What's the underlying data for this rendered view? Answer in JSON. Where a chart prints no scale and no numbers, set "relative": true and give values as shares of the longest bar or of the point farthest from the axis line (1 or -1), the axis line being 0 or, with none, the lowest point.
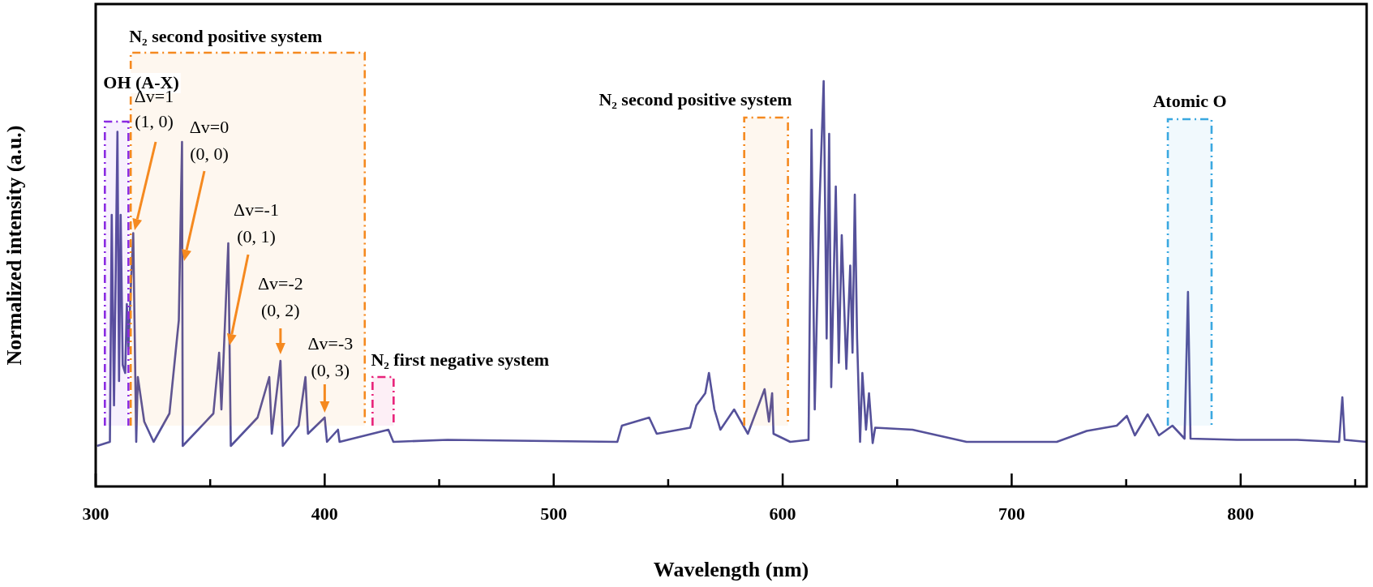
{
  "chart_data": {
    "type": "line",
    "relative": true,
    "xlabel": "Wavelength (nm)",
    "ylabel": "Normalized intensity (a.u.)",
    "xlim": [
      300,
      855
    ],
    "xticks": [
      300,
      {
        "value": 350,
        "label": null
      },
      400,
      {
        "value": 450,
        "label": null
      },
      500,
      {
        "value": 550,
        "label": null
      },
      600,
      {
        "value": 650,
        "label": null
      },
      700,
      {
        "value": 750,
        "label": null
      },
      800,
      {
        "value": 850,
        "label": null
      }
    ],
    "x": [
      300.6,
      306.2,
      307,
      308,
      309.5,
      310.2,
      310.9,
      311.8,
      312.9,
      313.6,
      314.3,
      315.4,
      316.4,
      317.7,
      318.4,
      321.2,
      325.3,
      332.2,
      336.3,
      337.7,
      338,
      351.4,
      353.9,
      354.9,
      357.9,
      359,
      370.7,
      375.8,
      376.9,
      380.7,
      381.7,
      388.6,
      391.6,
      392.7,
      400,
      401,
      405.8,
      406.5,
      427.8,
      430,
      453.6,
      527.8,
      529.8,
      541.7,
      545,
      559.6,
      562.3,
      566.2,
      567.8,
      570.2,
      572.8,
      578.8,
      584.8,
      592.1,
      594,
      595.4,
      596,
      603.3,
      611.3,
      612.6,
      614,
      615.9,
      617.9,
      619.2,
      620.3,
      621.2,
      623.2,
      624.5,
      625.8,
      627.8,
      629.5,
      630.5,
      631.5,
      632.5,
      633.8,
      634.8,
      636.4,
      637.7,
      639.3,
      640.4,
      656.7,
      680.3,
      719.7,
      732.8,
      745.9,
      750.3,
      753.8,
      759.4,
      764.3,
      770.2,
      775.5,
      777,
      778.1,
      798.4,
      824.7,
      843,
      844.4,
      845.4,
      855
    ],
    "series": [
      {
        "color": "#55519a",
        "values": [
          0.1,
          0.11,
          0.67,
          0.2,
          0.875,
          0.26,
          0.67,
          0.3,
          0.28,
          0.45,
          0.34,
          0.5,
          0.625,
          0.11,
          0.27,
          0.16,
          0.11,
          0.18,
          0.41,
          0.85,
          0.1,
          0.18,
          0.33,
          0.19,
          0.6,
          0.1,
          0.17,
          0.27,
          0.13,
          0.31,
          0.1,
          0.15,
          0.27,
          0.13,
          0.17,
          0.11,
          0.14,
          0.11,
          0.14,
          0.11,
          0.115,
          0.11,
          0.15,
          0.17,
          0.13,
          0.145,
          0.2,
          0.23,
          0.28,
          0.19,
          0.14,
          0.19,
          0.13,
          0.24,
          0.16,
          0.23,
          0.13,
          0.11,
          0.115,
          0.88,
          0.19,
          0.665,
          1.0,
          0.365,
          0.87,
          0.245,
          0.74,
          0.305,
          0.62,
          0.29,
          0.545,
          0.33,
          0.72,
          0.365,
          0.11,
          0.28,
          0.14,
          0.23,
          0.107,
          0.145,
          0.14,
          0.11,
          0.11,
          0.137,
          0.15,
          0.174,
          0.126,
          0.178,
          0.126,
          0.15,
          0.118,
          0.48,
          0.118,
          0.115,
          0.115,
          0.11,
          0.22,
          0.115,
          0.11
        ]
      }
    ],
    "marker": "none",
    "legend": false,
    "bands": [
      {
        "axis": "x",
        "from": 304,
        "to": 314.3,
        "label": "OH (A-X)",
        "color": "#8a2be2"
      },
      {
        "axis": "x",
        "from": 315.3,
        "to": 417.5,
        "label": "N₂ second positive system",
        "color": "#f5891f"
      },
      {
        "axis": "x",
        "from": 420.9,
        "to": 430.1,
        "label": "N₂ first negative system",
        "color": "#e8237a"
      },
      {
        "axis": "x",
        "from": 583.2,
        "to": 602.3,
        "label": "N₂ second positive system",
        "color": "#f5891f"
      },
      {
        "axis": "x",
        "from": 768.2,
        "to": 787.3,
        "label": "Atomic O",
        "color": "#3aa8e0"
      }
    ],
    "annotations": [
      "Δv=1\n(1, 0)",
      "Δv=0\n(0, 0)",
      "Δv=-1\n(0, 1)",
      {
        "text": "Δv=-2\n(0, 2)",
        "x": 380.7,
        "y": 0.31
      },
      {
        "text": "Δv=-3\n(0, 3)",
        "x": 400,
        "y": 0.17
      }
    ]
  }
}
